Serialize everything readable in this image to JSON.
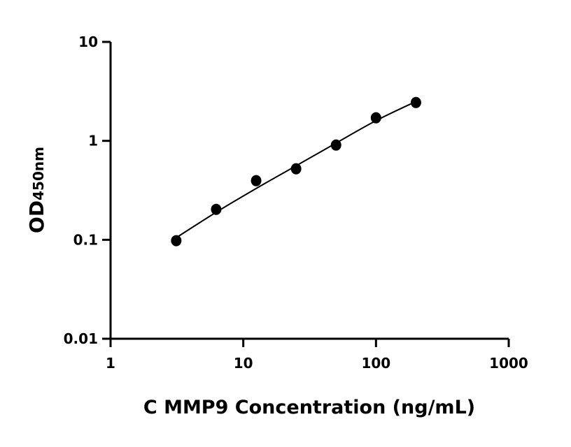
{
  "chart_data": {
    "type": "scatter",
    "xlabel": "C MMP9 Concentration (ng/mL)",
    "ylabel": "OD",
    "ylabel_subscript": "450nm",
    "xscale": "log",
    "yscale": "log",
    "xlim": [
      1,
      1000
    ],
    "ylim": [
      0.01,
      10
    ],
    "xticks": [
      "1",
      "10",
      "100",
      "1000"
    ],
    "yticks": [
      "0.01",
      "0.1",
      "1",
      "10"
    ],
    "grid": false,
    "points": {
      "x": [
        3.125,
        6.25,
        12.5,
        25,
        50,
        100,
        200
      ],
      "y": [
        0.098,
        0.203,
        0.396,
        0.522,
        0.907,
        1.71,
        2.44
      ]
    },
    "fit_curve": {
      "x": [
        3.125,
        6.25,
        12.5,
        25,
        50,
        100,
        200
      ],
      "y": [
        0.105,
        0.19,
        0.33,
        0.56,
        0.95,
        1.6,
        2.5
      ]
    },
    "colors": {
      "points": "#000000",
      "curve": "#000000"
    }
  }
}
